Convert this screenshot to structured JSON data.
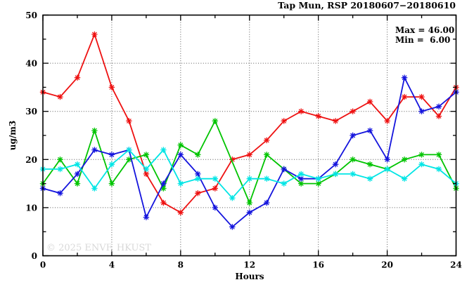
{
  "title": "Tap Mun, RSP 20180607−20180610",
  "stats": {
    "max_label": "Max = 46.00",
    "min_label": "Min =  6.00"
  },
  "watermark": "© 2025 ENVF, HKUST",
  "chart_data": {
    "type": "line",
    "title": "Tap Mun, RSP 20180607−20180610",
    "xlabel": "Hours",
    "ylabel": "ug/m3",
    "xlim": [
      0,
      24
    ],
    "ylim": [
      0,
      50
    ],
    "x_major_ticks": [
      0,
      4,
      8,
      12,
      16,
      20,
      24
    ],
    "x_minor_ticks": [
      2,
      6,
      10,
      14,
      18,
      22
    ],
    "y_major_ticks": [
      0,
      10,
      20,
      30,
      40,
      50
    ],
    "y_minor_ticks": [
      5,
      15,
      25,
      35,
      45
    ],
    "x_grid": [
      4,
      8,
      12,
      16,
      20
    ],
    "y_grid": [
      10,
      20,
      30,
      40
    ],
    "grid_style": "dotted",
    "legend": "none",
    "marker": "asterisk",
    "x": [
      0,
      1,
      2,
      3,
      4,
      5,
      6,
      7,
      8,
      9,
      10,
      11,
      12,
      13,
      14,
      15,
      16,
      17,
      18,
      19,
      20,
      21,
      22,
      23,
      24
    ],
    "series": [
      {
        "name": "red",
        "color": "#ee1111",
        "values": [
          34,
          33,
          37,
          46,
          35,
          28,
          17,
          11,
          9,
          13,
          14,
          20,
          21,
          24,
          28,
          30,
          29,
          28,
          30,
          32,
          28,
          33,
          33,
          29,
          35
        ]
      },
      {
        "name": "green",
        "color": "#00c400",
        "values": [
          15,
          20,
          15,
          26,
          15,
          20,
          21,
          14,
          23,
          21,
          28,
          null,
          11,
          21,
          18,
          15,
          15,
          17,
          20,
          19,
          18,
          20,
          21,
          21,
          14
        ]
      },
      {
        "name": "blue",
        "color": "#1414dd",
        "values": [
          14,
          13,
          17,
          22,
          21,
          22,
          8,
          15,
          21,
          17,
          10,
          6,
          9,
          11,
          18,
          16,
          16,
          19,
          25,
          26,
          20,
          37,
          30,
          31,
          34
        ]
      },
      {
        "name": "cyan",
        "color": "#00e5e5",
        "values": [
          18,
          18,
          19,
          14,
          19,
          22,
          18,
          22,
          15,
          16,
          16,
          12,
          16,
          16,
          15,
          17,
          16,
          17,
          17,
          16,
          18,
          16,
          19,
          18,
          15
        ]
      }
    ],
    "max": 46.0,
    "min": 6.0
  }
}
